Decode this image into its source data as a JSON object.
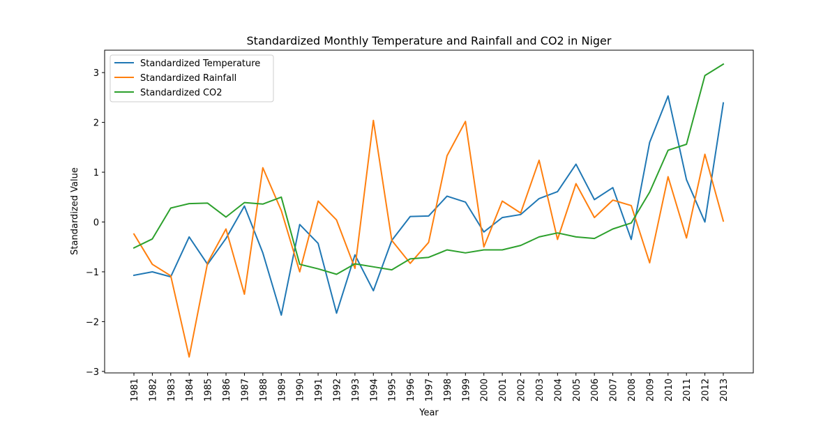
{
  "chart_data": {
    "type": "line",
    "title": "Standardized Monthly Temperature and Rainfall and CO2 in Niger",
    "xlabel": "Year",
    "ylabel": "Standardized Value",
    "categories": [
      "1981",
      "1982",
      "1983",
      "1984",
      "1985",
      "1986",
      "1987",
      "1988",
      "1989",
      "1990",
      "1991",
      "1992",
      "1993",
      "1994",
      "1995",
      "1996",
      "1997",
      "1998",
      "1999",
      "2000",
      "2001",
      "2002",
      "2003",
      "2004",
      "2005",
      "2006",
      "2007",
      "2008",
      "2009",
      "2010",
      "2011",
      "2012",
      "2013"
    ],
    "yticks": [
      -3,
      -2,
      -1,
      0,
      1,
      2,
      3
    ],
    "ytick_labels": [
      "−3",
      "−2",
      "−1",
      "0",
      "1",
      "2",
      "3"
    ],
    "ylim": [
      -3.03,
      3.45
    ],
    "grid": false,
    "legend_position": "upper-left",
    "series": [
      {
        "name": "Standardized Temperature",
        "color": "#1f77b4",
        "values": [
          -1.07,
          -1.0,
          -1.1,
          -0.3,
          -0.85,
          -0.33,
          0.32,
          -0.62,
          -1.87,
          -0.05,
          -0.43,
          -1.83,
          -0.66,
          -1.38,
          -0.37,
          0.11,
          0.12,
          0.52,
          0.4,
          -0.2,
          0.09,
          0.15,
          0.47,
          0.61,
          1.16,
          0.45,
          0.69,
          -0.35,
          1.6,
          2.53,
          0.85,
          0.0,
          2.39
        ]
      },
      {
        "name": "Standardized Rainfall",
        "color": "#ff7f0e",
        "values": [
          -0.24,
          -0.85,
          -1.08,
          -2.71,
          -0.82,
          -0.14,
          -1.45,
          1.09,
          0.23,
          -1.0,
          0.42,
          0.04,
          -0.93,
          2.04,
          -0.37,
          -0.83,
          -0.41,
          1.33,
          2.02,
          -0.5,
          0.42,
          0.18,
          1.24,
          -0.35,
          0.77,
          0.09,
          0.44,
          0.33,
          -0.82,
          0.91,
          -0.32,
          1.36,
          0.02
        ]
      },
      {
        "name": "Standardized CO2",
        "color": "#2ca02c",
        "values": [
          -0.52,
          -0.34,
          0.28,
          0.37,
          0.38,
          0.1,
          0.39,
          0.36,
          0.5,
          -0.85,
          -0.94,
          -1.05,
          -0.84,
          -0.9,
          -0.96,
          -0.74,
          -0.71,
          -0.56,
          -0.62,
          -0.56,
          -0.56,
          -0.47,
          -0.3,
          -0.22,
          -0.3,
          -0.33,
          -0.14,
          -0.02,
          0.6,
          1.44,
          1.56,
          2.94,
          3.17
        ]
      }
    ]
  }
}
